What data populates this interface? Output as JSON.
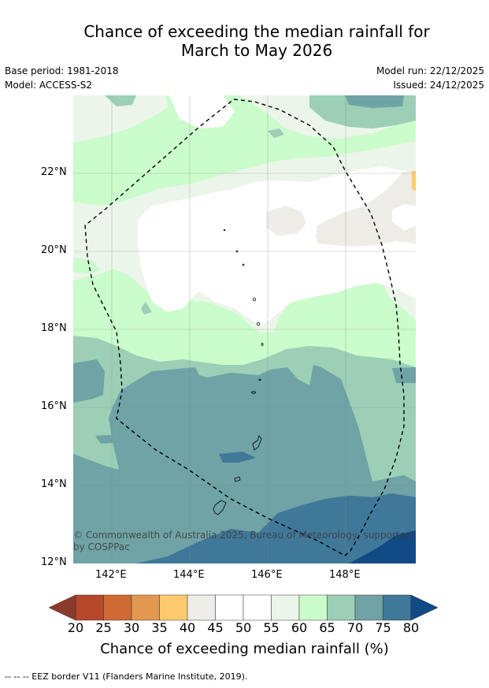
{
  "title_line1": "Chance of exceeding the median rainfall for",
  "title_line2": "March to May 2026",
  "base_period": "Base period: 1981-2018",
  "model": "Model: ACCESS-S2",
  "model_run": "Model run: 22/12/2025",
  "issued": "Issued: 24/12/2025",
  "lat_labels": [
    "22°N",
    "20°N",
    "18°N",
    "16°N",
    "14°N",
    "12°N"
  ],
  "lon_labels": [
    "142°E",
    "144°E",
    "146°E",
    "148°E"
  ],
  "copyright": "© Commonwealth of Australia 2025, Bureau of Meteorology, supported by COSPPac",
  "colorbar": {
    "title": "Chance of exceeding median rainfall (%)",
    "ticks": [
      "20",
      "25",
      "30",
      "35",
      "40",
      "45",
      "50",
      "55",
      "60",
      "65",
      "70",
      "75",
      "80"
    ],
    "colors": {
      "below20": "#8b3a2b",
      "20-25": "#b5472a",
      "25-30": "#cf6a34",
      "30-35": "#e2984f",
      "35-40": "#fdcb6e",
      "40-45": "#eeece6",
      "45-50": "#ffffff",
      "50-55": "#ffffff",
      "55-60": "#ecf5ea",
      "60-65": "#cbfccb",
      "65-70": "#9ccfb6",
      "70-75": "#6fa3a6",
      "75-80": "#3f7899",
      "above80": "#114a85"
    }
  },
  "footnote": "--  --  -- EEZ border V11 (Flanders Marine Institute, 2019)."
}
